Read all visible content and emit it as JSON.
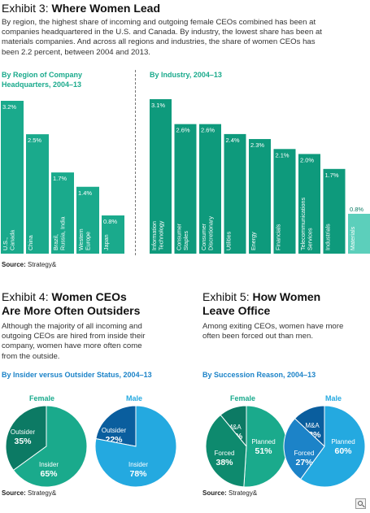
{
  "colors": {
    "female": "#1aaa8c",
    "male": "#24a9e0",
    "dark_teal": "#0c7a64",
    "dark_blue": "#0a5e9e",
    "mid_blue": "#1c83c8"
  },
  "exhibit3": {
    "num": "Exhibit 3: ",
    "title": "Where Women Lead",
    "intro": [
      "By region, the highest share of incoming and outgoing female CEOs combined has been at",
      "companies headquartered in the U.S. and Canada. By industry, the lowest share has been at",
      "materials companies. And across all regions and industries, the share of women CEOs has",
      "been 2.2 percent, between 2004 and 2013."
    ],
    "region_heading": [
      "By Region of Company",
      "Headquarters, 2004–13"
    ],
    "industry_heading": "By Industry, 2004–13",
    "source_label": "Source:",
    "source_text": " Strategy&"
  },
  "chart_data": [
    {
      "type": "bar",
      "title": "By Region of Company Headquarters, 2004–13",
      "categories": [
        "U.S., Canada",
        "China",
        "Brazil, Russia, India",
        "Western Europe",
        "Japan"
      ],
      "values": [
        3.2,
        2.5,
        1.7,
        1.4,
        0.8
      ],
      "value_labels": [
        "3.2%",
        "2.5%",
        "1.7%",
        "1.4%",
        "0.8%"
      ],
      "ylim": [
        0,
        3.2
      ],
      "color": "#1aaa8c"
    },
    {
      "type": "bar",
      "title": "By Industry, 2004–13",
      "categories": [
        "Information Technology",
        "Consumer Staples",
        "Consumer Discretionary",
        "Utilities",
        "Energy",
        "Financials",
        "Telecommunications Services",
        "Industrials",
        "Materials"
      ],
      "values": [
        3.1,
        2.6,
        2.6,
        2.4,
        2.3,
        2.1,
        2.0,
        1.7,
        0.8
      ],
      "value_labels": [
        "3.1%",
        "2.6%",
        "2.6%",
        "2.4%",
        "2.3%",
        "2.1%",
        "2.0%",
        "1.7%",
        "0.8%"
      ],
      "ylim": [
        0,
        3.1
      ],
      "color": "#0e9a7c",
      "highlight_last_color": "#5ccfbb"
    },
    {
      "type": "pie",
      "title": "By Insider versus Outsider Status, 2004–13",
      "charts": [
        {
          "name": "Female",
          "slices": [
            {
              "label": "Outsider",
              "value": 35
            },
            {
              "label": "Insider",
              "value": 65
            }
          ]
        },
        {
          "name": "Male",
          "slices": [
            {
              "label": "Outsider",
              "value": 22
            },
            {
              "label": "Insider",
              "value": 78
            }
          ]
        }
      ]
    },
    {
      "type": "pie",
      "title": "By Succession Reason, 2004–13",
      "charts": [
        {
          "name": "Female",
          "slices": [
            {
              "label": "M&A",
              "value": 11
            },
            {
              "label": "Planned",
              "value": 51
            },
            {
              "label": "Forced",
              "value": 38
            }
          ]
        },
        {
          "name": "Male",
          "slices": [
            {
              "label": "M&A",
              "value": 13
            },
            {
              "label": "Planned",
              "value": 60
            },
            {
              "label": "Forced",
              "value": 27
            }
          ]
        }
      ]
    }
  ],
  "exhibit4": {
    "num": "Exhibit 4: ",
    "title_lines": [
      "Women CEOs",
      "Are More Often Outsiders"
    ],
    "intro": [
      "Although the majority of all incoming and",
      "outgoing CEOs are hired from inside their",
      "company, women have more often come",
      "from the outside."
    ],
    "subtitle": "By Insider versus Outsider Status, 2004–13",
    "female_label": "Female",
    "male_label": "Male",
    "source_label": "Source:",
    "source_text": " Strategy&"
  },
  "exhibit5": {
    "num": "Exhibit 5: ",
    "title_lines": [
      "How Women",
      "Leave Office"
    ],
    "intro": [
      "Among exiting CEOs, women have more",
      "often been forced out than men."
    ],
    "subtitle": "By Succession Reason, 2004–13",
    "female_label": "Female",
    "male_label": "Male",
    "source_label": "Source:",
    "source_text": " Strategy&"
  }
}
